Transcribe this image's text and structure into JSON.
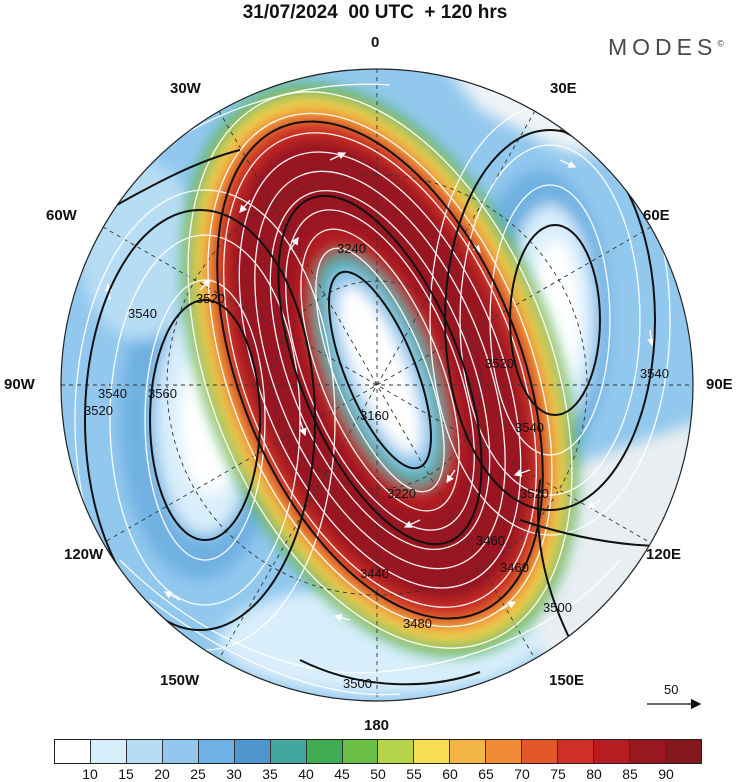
{
  "title": "31/07/2024  00 UTC  + 120 hrs",
  "brand": "MODES",
  "brand_mark": "©",
  "meridian_labels": {
    "m0": "0",
    "m30e": "30E",
    "m60e": "60E",
    "m90e": "90E",
    "m120e": "120E",
    "m150e": "150E",
    "m180": "180",
    "m150w": "150W",
    "m120w": "120W",
    "m90w": "90W",
    "m60w": "60W",
    "m30w": "30W"
  },
  "contour_labels": [
    "3240",
    "3540",
    "3520",
    "3560",
    "3520",
    "3540",
    "3520",
    "3540",
    "3520",
    "3540",
    "3160",
    "3220",
    "3440",
    "3460",
    "3460",
    "3500",
    "3500",
    "3480"
  ],
  "reference_vector": {
    "value": "50"
  },
  "colorbar": {
    "ticks": [
      "10",
      "15",
      "20",
      "25",
      "30",
      "35",
      "40",
      "45",
      "50",
      "55",
      "60",
      "65",
      "70",
      "75",
      "80",
      "85",
      "90"
    ],
    "colors": [
      "#ffffff",
      "#d8eefb",
      "#b7ddf5",
      "#92c8ee",
      "#6fb1e2",
      "#4f96cf",
      "#43a79d",
      "#3fae53",
      "#6cbf46",
      "#b5d44a",
      "#f6dd52",
      "#f4b548",
      "#ef8a35",
      "#e4572a",
      "#cf2f27",
      "#b51d23",
      "#981820",
      "#841719"
    ]
  }
}
